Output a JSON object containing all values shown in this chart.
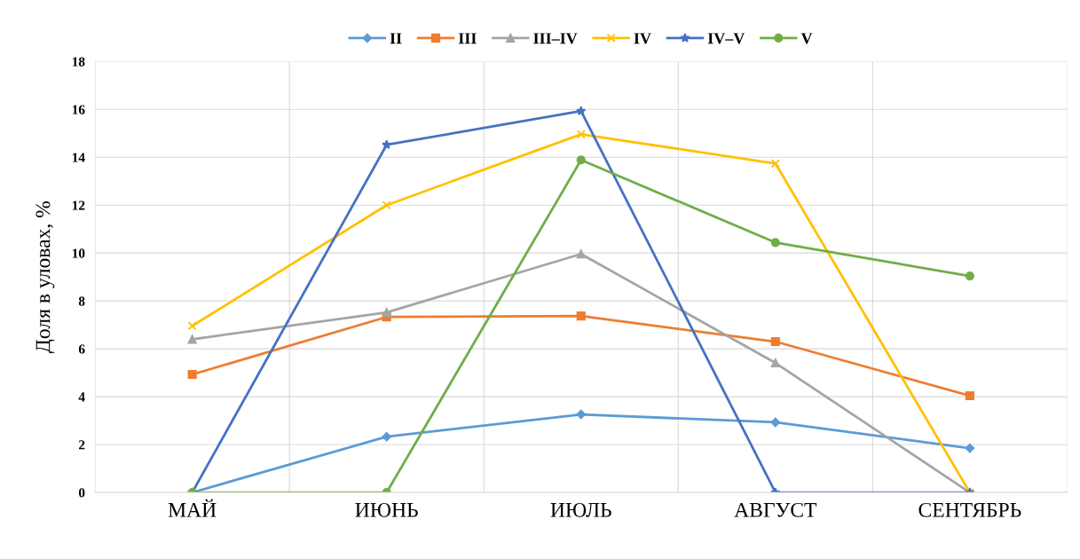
{
  "chart_data": {
    "type": "line",
    "ylabel": "Доля в уловах, %",
    "categories": [
      "МАЙ",
      "ИЮНЬ",
      "ИЮЛЬ",
      "АВГУСТ",
      "СЕНТЯБРЬ"
    ],
    "series": [
      {
        "name": "II",
        "color": "#5b9bd5",
        "marker": "diamond",
        "values": [
          0,
          2.33,
          3.26,
          2.93,
          1.85
        ]
      },
      {
        "name": "III",
        "color": "#ed7d31",
        "marker": "square",
        "values": [
          4.93,
          7.33,
          7.37,
          6.3,
          4.04
        ]
      },
      {
        "name": "III–IV",
        "color": "#a5a5a5",
        "marker": "triangle",
        "values": [
          6.4,
          7.52,
          9.96,
          5.41,
          0
        ]
      },
      {
        "name": "IV",
        "color": "#ffc000",
        "marker": "cross",
        "values": [
          6.96,
          12.0,
          14.96,
          13.74,
          0
        ]
      },
      {
        "name": "IV–V",
        "color": "#4472c4",
        "marker": "star",
        "values": [
          0,
          14.52,
          15.93,
          0,
          0
        ]
      },
      {
        "name": "V",
        "color": "#70ad47",
        "marker": "circle",
        "values": [
          0,
          0,
          13.89,
          10.44,
          9.04
        ]
      }
    ],
    "ylim": [
      0,
      18
    ],
    "yticks": [
      0,
      2,
      4,
      6,
      8,
      10,
      12,
      14,
      16,
      18
    ],
    "grid": true,
    "legend": "top",
    "line_style": "solid"
  }
}
